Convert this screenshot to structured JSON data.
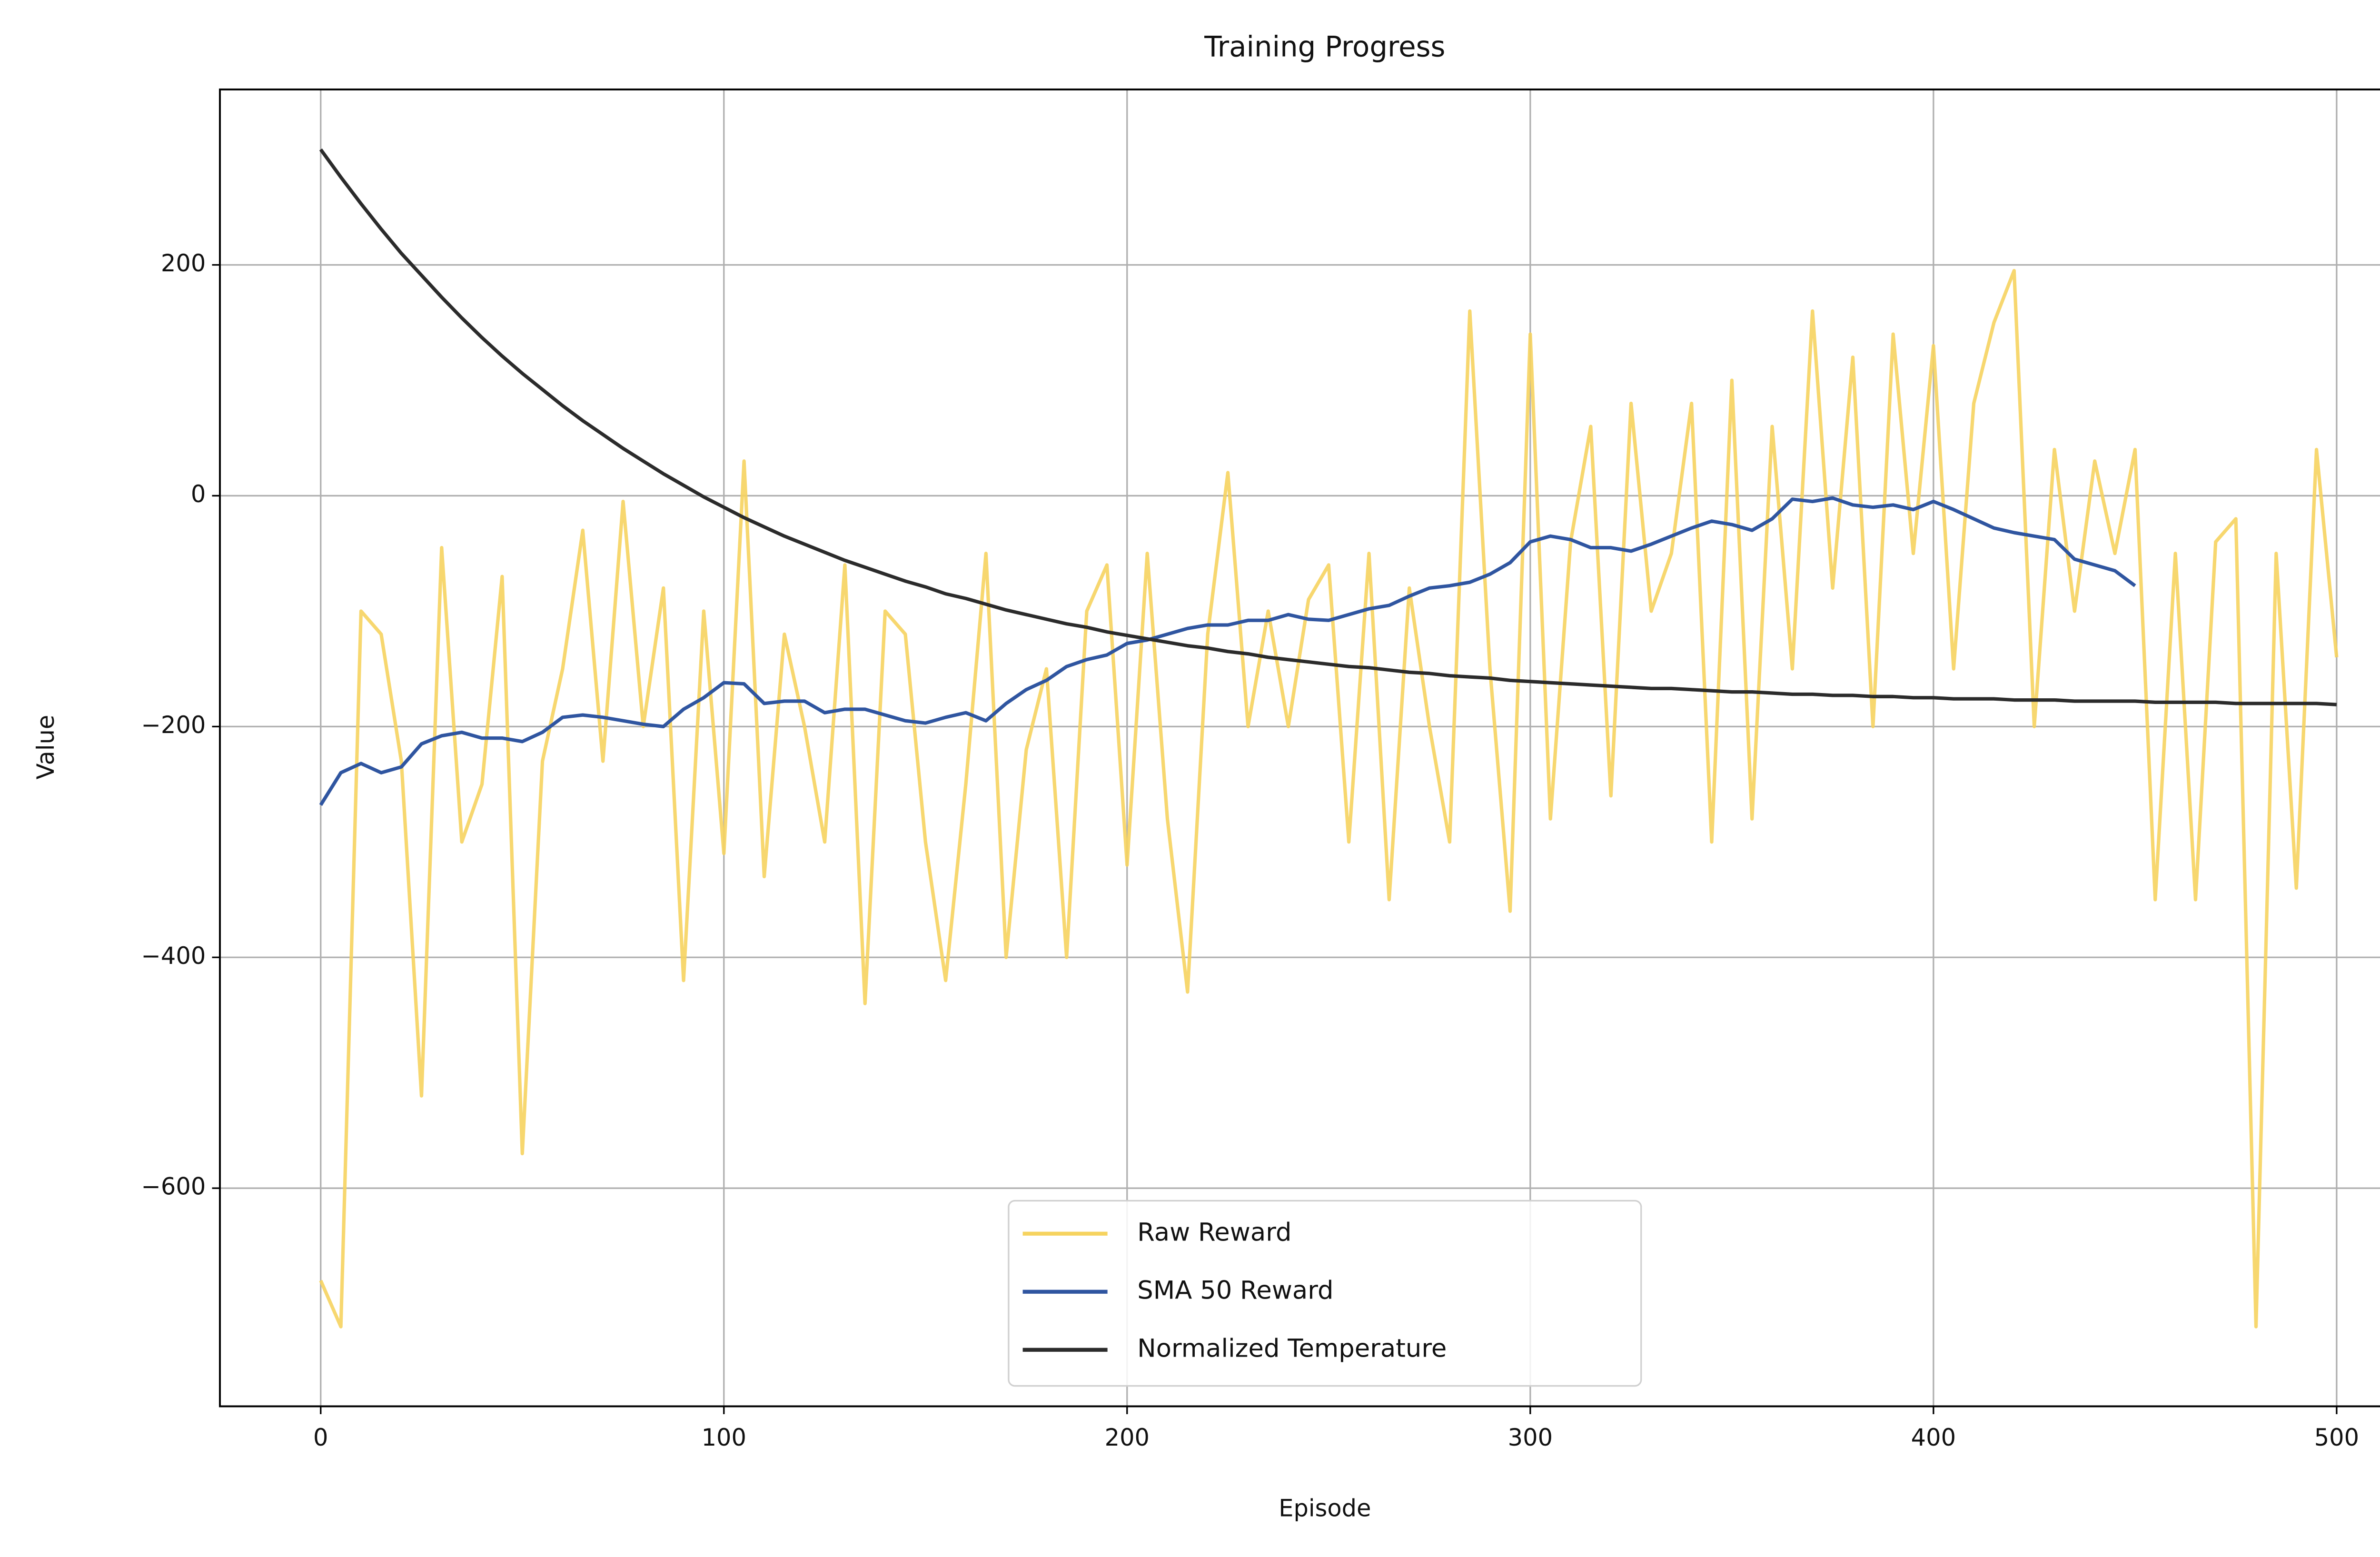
{
  "chart_data": {
    "type": "line",
    "title": "Training Progress",
    "xlabel": "Episode",
    "ylabel": "Value",
    "x": [
      0,
      5,
      10,
      15,
      20,
      25,
      30,
      35,
      40,
      45,
      50,
      55,
      60,
      65,
      70,
      75,
      80,
      85,
      90,
      95,
      100,
      105,
      110,
      115,
      120,
      125,
      130,
      135,
      140,
      145,
      150,
      155,
      160,
      165,
      170,
      175,
      180,
      185,
      190,
      195,
      200,
      205,
      210,
      215,
      220,
      225,
      230,
      235,
      240,
      245,
      250,
      255,
      260,
      265,
      270,
      275,
      280,
      285,
      290,
      295,
      300,
      305,
      310,
      315,
      320,
      325,
      330,
      335,
      340,
      345,
      350,
      355,
      360,
      365,
      370,
      375,
      380,
      385,
      390,
      395,
      400,
      405,
      410,
      415,
      420,
      425,
      430,
      435,
      440,
      445,
      450,
      455,
      460,
      465,
      470,
      475,
      480,
      485,
      490,
      495,
      500
    ],
    "series": [
      {
        "name": "Raw Reward",
        "color": "#f6d35f",
        "values": [
          -680,
          -720,
          -100,
          -120,
          -230,
          -520,
          -45,
          -300,
          -250,
          -70,
          -570,
          -230,
          -150,
          -30,
          -230,
          -5,
          -200,
          -80,
          -420,
          -100,
          -310,
          30,
          -330,
          -120,
          -200,
          -300,
          -60,
          -440,
          -100,
          -120,
          -300,
          -420,
          -250,
          -50,
          -400,
          -220,
          -150,
          -400,
          -100,
          -60,
          -320,
          -50,
          -280,
          -430,
          -120,
          20,
          -200,
          -100,
          -200,
          -90,
          -60,
          -300,
          -50,
          -350,
          -80,
          -200,
          -300,
          160,
          -150,
          -360,
          140,
          -280,
          -40,
          60,
          -260,
          80,
          -100,
          -50,
          80,
          -300,
          100,
          -280,
          60,
          -150,
          160,
          -80,
          120,
          -200,
          140,
          -50,
          130,
          -150,
          80,
          150,
          195,
          -200,
          40,
          -100,
          30,
          -50,
          40,
          -350,
          -50,
          -350,
          -40,
          -20,
          -720,
          -50,
          -340,
          40,
          -140
        ]
      },
      {
        "name": "SMA 50 Reward",
        "color": "#2f55a0",
        "values": [
          -268,
          -240,
          -232,
          -240,
          -235,
          -215,
          -208,
          -205,
          -210,
          -210,
          -213,
          -205,
          -192,
          -190,
          -192,
          -195,
          -198,
          -200,
          -185,
          -175,
          -162,
          -163,
          -180,
          -178,
          -178,
          -188,
          -185,
          -185,
          -190,
          -195,
          -197,
          -192,
          -188,
          -195,
          -180,
          -168,
          -160,
          -148,
          -142,
          -138,
          -128,
          -125,
          -120,
          -115,
          -112,
          -112,
          -108,
          -108,
          -103,
          -107,
          -108,
          -103,
          -98,
          -95,
          -87,
          -80,
          -78,
          -75,
          -68,
          -58,
          -40,
          -35,
          -38,
          -45,
          -45,
          -48,
          -42,
          -35,
          -28,
          -22,
          -25,
          -30,
          -20,
          -3,
          -5,
          -2,
          -8,
          -10,
          -8,
          -12,
          -5,
          -12,
          -20,
          -28,
          -32,
          -35,
          -38,
          -55,
          -60,
          -65,
          -78,
          null,
          null,
          null,
          null,
          null,
          null,
          null,
          null,
          null,
          null
        ]
      },
      {
        "name": "Normalized Temperature",
        "color": "#2b2b2b",
        "values": [
          300,
          276,
          253,
          231,
          210,
          191,
          172,
          154,
          137,
          121,
          106,
          92,
          78,
          65,
          53,
          41,
          30,
          19,
          9,
          -1,
          -10,
          -19,
          -27,
          -35,
          -42,
          -49,
          -56,
          -62,
          -68,
          -74,
          -79,
          -85,
          -89,
          -94,
          -99,
          -103,
          -107,
          -111,
          -114,
          -118,
          -121,
          -124,
          -127,
          -130,
          -132,
          -135,
          -137,
          -140,
          -142,
          -144,
          -146,
          -148,
          -149,
          -151,
          -153,
          -154,
          -156,
          -157,
          -158,
          -160,
          -161,
          -162,
          -163,
          -164,
          -165,
          -166,
          -167,
          -167,
          -168,
          -169,
          -170,
          -170,
          -171,
          -172,
          -172,
          -173,
          -173,
          -174,
          -174,
          -175,
          -175,
          -176,
          -176,
          -176,
          -177,
          -177,
          -177,
          -178,
          -178,
          -178,
          -178,
          -179,
          -179,
          -179,
          -179,
          -180,
          -180,
          -180,
          -180,
          -180,
          -181
        ]
      }
    ],
    "xlim": [
      -25,
      520
    ],
    "ylim": [
      -789,
      352
    ],
    "xticks": [
      0,
      100,
      200,
      300,
      400,
      500
    ],
    "yticks": [
      {
        "value": -600,
        "label": "−600"
      },
      {
        "value": -400,
        "label": "−400"
      },
      {
        "value": -200,
        "label": "−200"
      },
      0,
      200
    ],
    "grid": true,
    "legend": "lower center"
  }
}
